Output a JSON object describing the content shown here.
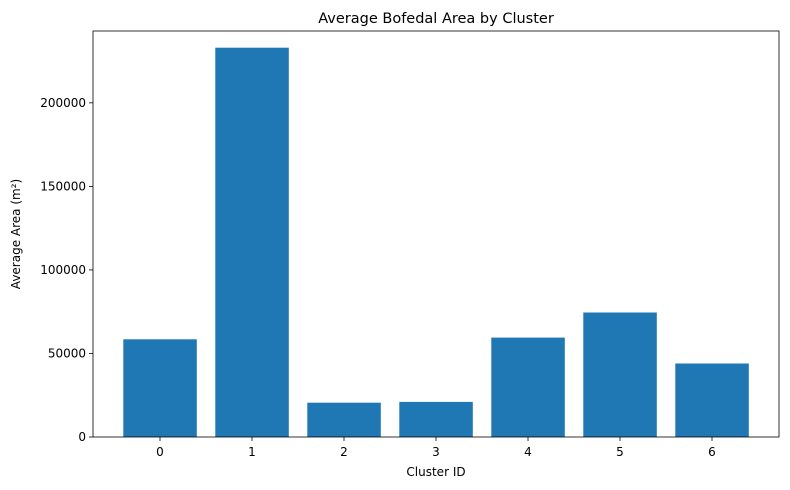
{
  "chart_data": {
    "type": "bar",
    "title": "Average Bofedal Area by Cluster",
    "xlabel": "Cluster ID",
    "ylabel": "Average Area (m²)",
    "categories": [
      "0",
      "1",
      "2",
      "3",
      "4",
      "5",
      "6"
    ],
    "values": [
      58500,
      233000,
      20500,
      21000,
      59500,
      74500,
      44000
    ],
    "ylim": [
      0,
      243000
    ],
    "yticks": [
      0,
      50000,
      100000,
      150000,
      200000
    ],
    "ytick_labels": [
      "0",
      "50000",
      "100000",
      "150000",
      "200000"
    ],
    "bar_color": "#1f77b4",
    "grid": false,
    "legend": "none"
  }
}
